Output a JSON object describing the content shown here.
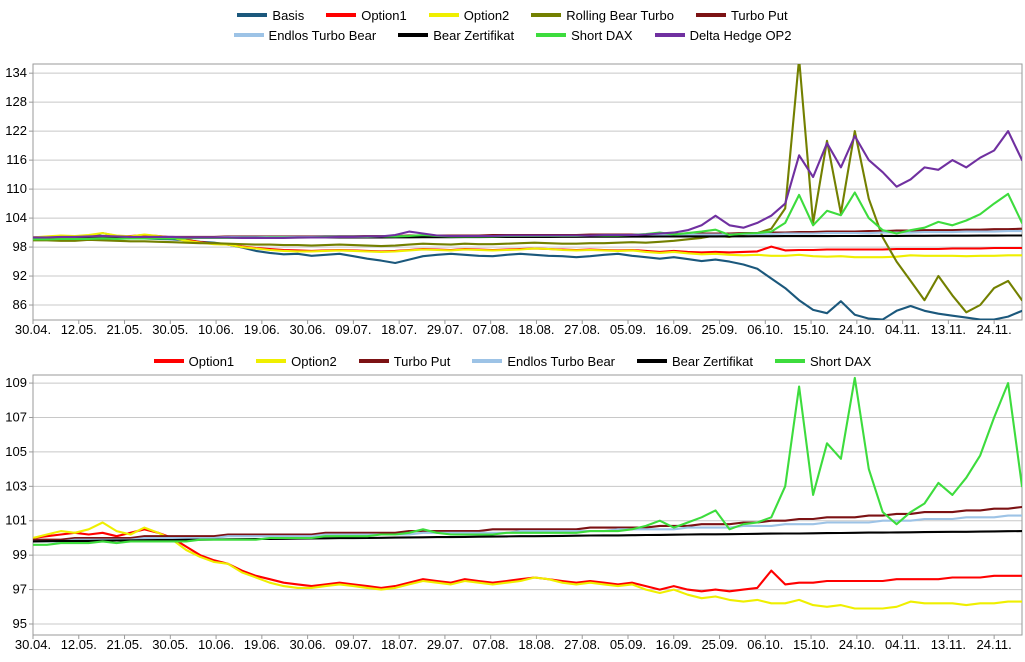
{
  "chart_data": {
    "type": "line",
    "grid": true,
    "colors": {
      "grid": "#c8c8c8",
      "axis": "#9a9a9a",
      "text": "#000000",
      "background": "#ffffff"
    },
    "x_tick_labels": [
      "30.04.",
      "12.05.",
      "21.05.",
      "30.05.",
      "10.06.",
      "19.06.",
      "30.06.",
      "09.07.",
      "18.07.",
      "29.07.",
      "07.08.",
      "18.08.",
      "27.08.",
      "05.09.",
      "16.09.",
      "25.09.",
      "06.10.",
      "15.10.",
      "24.10.",
      "04.11.",
      "13.11.",
      "24.11."
    ],
    "series": {
      "Basis": {
        "color": "#1b587c",
        "values": [
          99.6,
          99.6,
          99.7,
          99.8,
          100.0,
          100.9,
          100.3,
          99.9,
          99.8,
          99.7,
          99.6,
          99.4,
          99.1,
          98.9,
          98.5,
          97.9,
          97.2,
          96.8,
          96.5,
          96.6,
          96.2,
          96.4,
          96.6,
          96.1,
          95.6,
          95.2,
          94.7,
          95.4,
          96.1,
          96.4,
          96.6,
          96.4,
          96.2,
          96.1,
          96.4,
          96.6,
          96.4,
          96.2,
          96.1,
          95.9,
          96.1,
          96.4,
          96.6,
          96.2,
          95.9,
          95.6,
          95.9,
          95.5,
          95.1,
          95.4,
          95.0,
          94.4,
          93.5,
          91.5,
          89.5,
          87.0,
          85.0,
          84.3,
          86.8,
          84.0,
          83.2,
          83.0,
          84.8,
          85.8,
          84.8,
          84.2,
          83.8,
          83.4,
          83.0,
          83.0,
          83.6,
          84.8
        ]
      },
      "Option1": {
        "color": "#ff0000",
        "values": [
          100.0,
          100.1,
          100.2,
          100.3,
          100.2,
          100.3,
          100.1,
          100.3,
          100.5,
          100.3,
          100.0,
          99.5,
          99.0,
          98.7,
          98.5,
          98.1,
          97.8,
          97.6,
          97.4,
          97.3,
          97.2,
          97.3,
          97.4,
          97.3,
          97.2,
          97.1,
          97.2,
          97.4,
          97.6,
          97.5,
          97.4,
          97.6,
          97.5,
          97.4,
          97.5,
          97.6,
          97.7,
          97.6,
          97.5,
          97.4,
          97.5,
          97.4,
          97.3,
          97.4,
          97.2,
          97.0,
          97.2,
          97.0,
          96.9,
          97.0,
          96.9,
          97.0,
          97.1,
          98.1,
          97.3,
          97.4,
          97.4,
          97.5,
          97.5,
          97.5,
          97.5,
          97.5,
          97.6,
          97.6,
          97.6,
          97.6,
          97.7,
          97.7,
          97.7,
          97.8,
          97.8,
          97.8
        ]
      },
      "Option2": {
        "color": "#efef00",
        "values": [
          100.0,
          100.2,
          100.4,
          100.3,
          100.5,
          100.9,
          100.4,
          100.2,
          100.6,
          100.3,
          99.9,
          99.3,
          98.9,
          98.6,
          98.5,
          98.0,
          97.7,
          97.4,
          97.2,
          97.1,
          97.1,
          97.2,
          97.3,
          97.2,
          97.1,
          97.0,
          97.1,
          97.3,
          97.5,
          97.4,
          97.3,
          97.5,
          97.4,
          97.3,
          97.4,
          97.5,
          97.7,
          97.6,
          97.4,
          97.3,
          97.4,
          97.3,
          97.2,
          97.3,
          97.0,
          96.8,
          97.0,
          96.7,
          96.5,
          96.6,
          96.4,
          96.3,
          96.4,
          96.2,
          96.2,
          96.4,
          96.1,
          96.0,
          96.1,
          95.9,
          95.9,
          95.9,
          96.0,
          96.3,
          96.2,
          96.2,
          96.2,
          96.1,
          96.2,
          96.2,
          96.3,
          96.3
        ]
      },
      "Rolling Bear Turbo": {
        "color": "#738000",
        "values": [
          99.4,
          99.4,
          99.3,
          99.3,
          99.5,
          99.4,
          99.3,
          99.2,
          99.2,
          99.1,
          99.0,
          98.9,
          98.8,
          98.8,
          98.7,
          98.6,
          98.5,
          98.5,
          98.4,
          98.4,
          98.3,
          98.4,
          98.5,
          98.4,
          98.3,
          98.2,
          98.3,
          98.5,
          98.7,
          98.6,
          98.5,
          98.7,
          98.6,
          98.6,
          98.7,
          98.8,
          98.9,
          98.8,
          98.7,
          98.7,
          98.8,
          98.8,
          98.9,
          99.0,
          98.9,
          99.1,
          99.3,
          99.6,
          99.9,
          100.4,
          100.1,
          100.6,
          100.9,
          101.8,
          106.0,
          137.0,
          103.0,
          120.0,
          105.0,
          122.0,
          108.0,
          100.0,
          95.0,
          91.0,
          87.0,
          92.0,
          88.0,
          84.5,
          86.0,
          89.5,
          91.0,
          87.0
        ]
      },
      "Turbo Put": {
        "color": "#7c1214",
        "values": [
          99.9,
          99.9,
          99.9,
          100.0,
          100.0,
          100.0,
          100.0,
          100.0,
          100.1,
          100.1,
          100.1,
          100.1,
          100.1,
          100.1,
          100.2,
          100.2,
          100.2,
          100.2,
          100.2,
          100.2,
          100.2,
          100.3,
          100.3,
          100.3,
          100.3,
          100.3,
          100.3,
          100.4,
          100.4,
          100.4,
          100.4,
          100.4,
          100.4,
          100.5,
          100.5,
          100.5,
          100.5,
          100.5,
          100.5,
          100.5,
          100.6,
          100.6,
          100.6,
          100.6,
          100.6,
          100.7,
          100.7,
          100.7,
          100.8,
          100.8,
          100.8,
          100.9,
          100.9,
          101.0,
          101.0,
          101.1,
          101.1,
          101.2,
          101.2,
          101.2,
          101.3,
          101.3,
          101.4,
          101.4,
          101.5,
          101.5,
          101.5,
          101.6,
          101.6,
          101.7,
          101.7,
          101.8
        ]
      },
      "Endlos Turbo Bear": {
        "color": "#9dc3e6",
        "values": [
          99.8,
          99.8,
          99.8,
          99.9,
          99.9,
          99.9,
          99.9,
          99.9,
          100.0,
          100.0,
          100.0,
          100.0,
          100.0,
          100.0,
          100.1,
          100.1,
          100.1,
          100.1,
          100.1,
          100.1,
          100.1,
          100.2,
          100.2,
          100.2,
          100.2,
          100.2,
          100.2,
          100.2,
          100.3,
          100.3,
          100.3,
          100.3,
          100.3,
          100.3,
          100.3,
          100.4,
          100.4,
          100.4,
          100.4,
          100.4,
          100.4,
          100.4,
          100.5,
          100.5,
          100.5,
          100.5,
          100.5,
          100.6,
          100.6,
          100.6,
          100.6,
          100.7,
          100.7,
          100.7,
          100.8,
          100.8,
          100.8,
          100.9,
          100.9,
          100.9,
          100.9,
          101.0,
          101.0,
          101.0,
          101.1,
          101.1,
          101.1,
          101.2,
          101.2,
          101.2,
          101.3,
          101.3
        ]
      },
      "Bear Zertifikat": {
        "color": "#000000",
        "values": [
          99.8,
          99.81,
          99.82,
          99.83,
          99.83,
          99.84,
          99.85,
          99.86,
          99.87,
          99.88,
          99.88,
          99.89,
          99.9,
          99.91,
          99.92,
          99.93,
          99.94,
          99.94,
          99.95,
          99.96,
          99.97,
          99.98,
          99.99,
          99.99,
          100.0,
          100.01,
          100.02,
          100.03,
          100.04,
          100.05,
          100.05,
          100.06,
          100.07,
          100.08,
          100.09,
          100.1,
          100.1,
          100.11,
          100.12,
          100.13,
          100.14,
          100.15,
          100.15,
          100.16,
          100.17,
          100.18,
          100.19,
          100.2,
          100.21,
          100.21,
          100.22,
          100.23,
          100.24,
          100.25,
          100.26,
          100.26,
          100.27,
          100.28,
          100.29,
          100.3,
          100.31,
          100.31,
          100.32,
          100.33,
          100.34,
          100.35,
          100.36,
          100.36,
          100.37,
          100.38,
          100.39,
          100.4
        ]
      },
      "Short DAX": {
        "color": "#3ddc3d",
        "values": [
          99.6,
          99.6,
          99.7,
          99.7,
          99.7,
          99.8,
          99.7,
          99.8,
          99.8,
          99.8,
          99.8,
          99.8,
          99.9,
          99.9,
          99.9,
          99.9,
          99.9,
          100.0,
          100.0,
          100.0,
          100.0,
          100.1,
          100.1,
          100.1,
          100.1,
          100.2,
          100.2,
          100.3,
          100.5,
          100.3,
          100.2,
          100.2,
          100.2,
          100.2,
          100.3,
          100.3,
          100.3,
          100.3,
          100.3,
          100.3,
          100.4,
          100.4,
          100.4,
          100.5,
          100.7,
          101.0,
          100.6,
          100.9,
          101.2,
          101.6,
          100.5,
          100.8,
          100.9,
          101.2,
          103.0,
          108.8,
          102.5,
          105.5,
          104.6,
          109.3,
          104.0,
          101.5,
          100.8,
          101.5,
          102.0,
          103.2,
          102.5,
          103.5,
          104.8,
          107.0,
          109.0,
          103.0
        ]
      },
      "Delta Hedge OP2": {
        "color": "#7030a0",
        "values": [
          100.0,
          100.0,
          100.1,
          100.1,
          100.2,
          100.3,
          100.2,
          100.1,
          100.1,
          100.1,
          100.1,
          100.0,
          100.0,
          100.0,
          100.0,
          99.9,
          99.9,
          99.9,
          99.9,
          100.0,
          100.0,
          100.0,
          100.1,
          100.1,
          100.2,
          100.2,
          100.5,
          101.2,
          100.8,
          100.4,
          100.3,
          100.3,
          100.3,
          100.3,
          100.4,
          100.4,
          100.4,
          100.4,
          100.4,
          100.4,
          100.4,
          100.5,
          100.5,
          100.5,
          100.6,
          100.8,
          101.0,
          101.5,
          102.5,
          104.5,
          102.5,
          102.0,
          103.0,
          104.5,
          107.0,
          117.0,
          112.5,
          119.5,
          114.5,
          121.0,
          116.0,
          113.5,
          110.5,
          112.0,
          114.5,
          114.0,
          116.0,
          114.5,
          116.5,
          118.0,
          122.0,
          116.0
        ]
      }
    },
    "charts": [
      {
        "id": "top",
        "legend_rows": [
          [
            "Basis",
            "Option1",
            "Option2",
            "Rolling Bear Turbo",
            "Turbo Put"
          ],
          [
            "Endlos Turbo Bear",
            "Bear Zertifikat",
            "Short DAX",
            "Delta Hedge OP2"
          ]
        ],
        "series": [
          "Basis",
          "Option1",
          "Option2",
          "Rolling Bear Turbo",
          "Turbo Put",
          "Endlos Turbo Bear",
          "Bear Zertifikat",
          "Short DAX",
          "Delta Hedge OP2"
        ],
        "y_ticks": [
          86,
          92,
          98,
          104,
          110,
          116,
          122,
          128,
          134
        ],
        "ylim": [
          82.9,
          135.9
        ],
        "legend_position": "top"
      },
      {
        "id": "bottom",
        "legend_rows": [
          [
            "Option1",
            "Option2",
            "Turbo Put",
            "Endlos Turbo Bear",
            "Bear Zertifikat",
            "Short DAX"
          ]
        ],
        "series": [
          "Option1",
          "Option2",
          "Turbo Put",
          "Endlos Turbo Bear",
          "Bear Zertifikat",
          "Short DAX"
        ],
        "y_ticks": [
          95,
          97,
          99,
          101,
          103,
          105,
          107,
          109
        ],
        "ylim": [
          94.36,
          109.47
        ],
        "legend_position": "top"
      }
    ]
  }
}
